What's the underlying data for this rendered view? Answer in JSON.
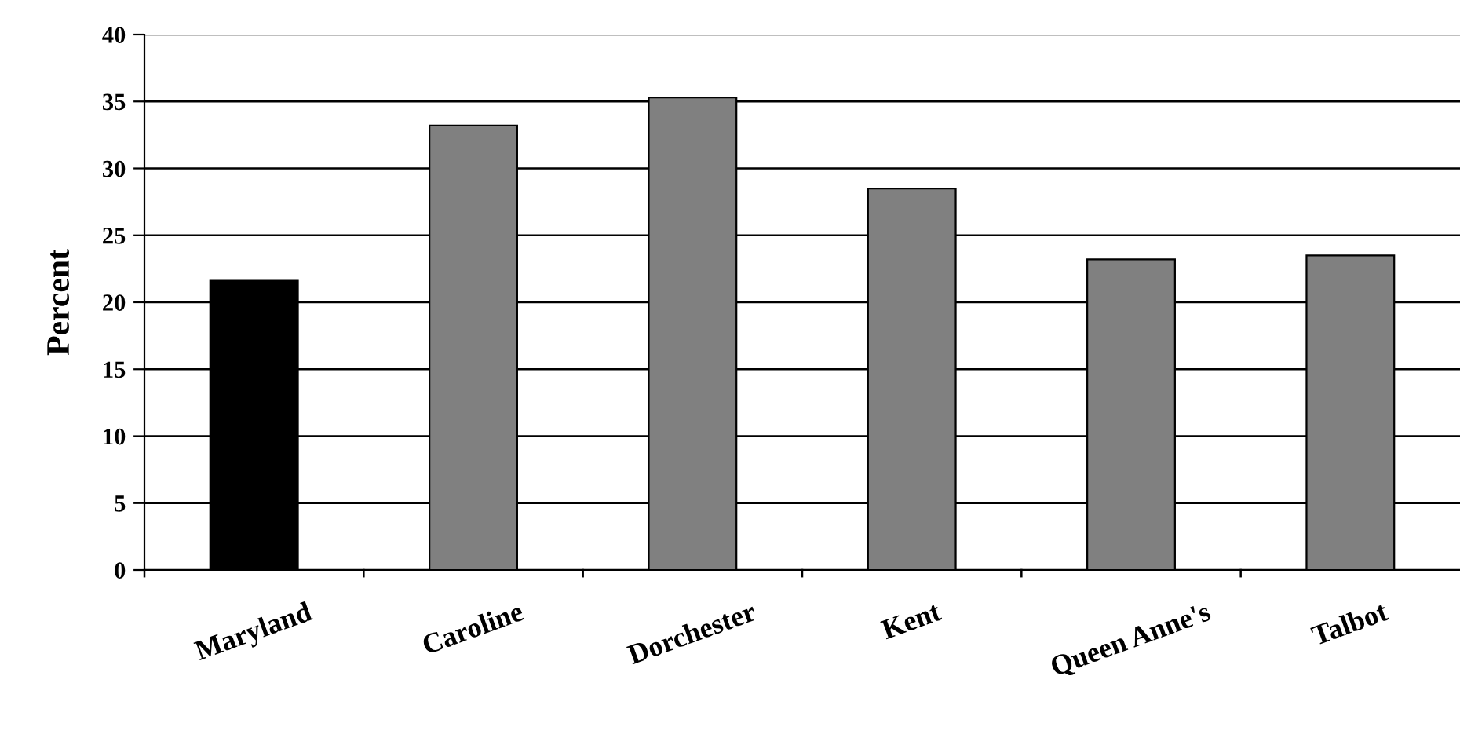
{
  "chart_data": {
    "type": "bar",
    "ylabel": "Percent",
    "categories": [
      "Maryland",
      "Caroline",
      "Dorchester",
      "Kent",
      "Queen Anne's",
      "Talbot"
    ],
    "values": [
      21.6,
      33.2,
      35.3,
      28.5,
      23.2,
      23.5
    ],
    "colors": [
      "#000000",
      "#808080",
      "#808080",
      "#808080",
      "#808080",
      "#808080"
    ],
    "ylim": [
      0,
      40
    ],
    "yticks": [
      0,
      5,
      10,
      15,
      20,
      25,
      30,
      35,
      40
    ],
    "grid": "y"
  }
}
